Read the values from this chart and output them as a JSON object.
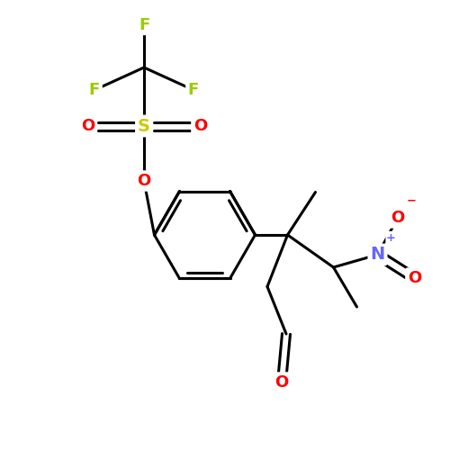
{
  "bg_color": "#ffffff",
  "bond_color": "#000000",
  "bond_width": 2.2,
  "font_size_atoms": 13,
  "colors": {
    "F": "#99cc00",
    "S": "#cccc00",
    "O": "#ff0000",
    "N": "#6666ff"
  },
  "figsize": [
    5.0,
    5.0
  ],
  "dpi": 100,
  "xlim": [
    0,
    10
  ],
  "ylim": [
    0,
    10
  ]
}
